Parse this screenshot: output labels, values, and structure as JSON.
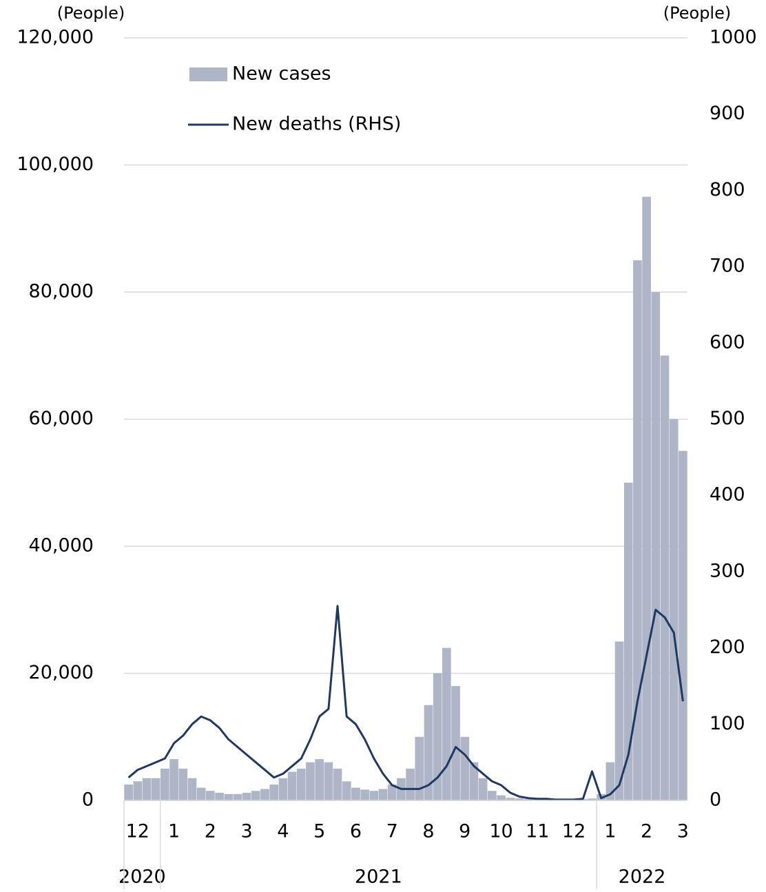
{
  "chart_data": {
    "type": "bar-line",
    "y_label": "(People)",
    "y2_label": "(People)",
    "categories": [
      null,
      "12",
      null,
      null,
      null,
      "1",
      null,
      null,
      null,
      "2",
      null,
      null,
      null,
      "3",
      null,
      null,
      null,
      "4",
      null,
      null,
      null,
      "5",
      null,
      null,
      null,
      "6",
      null,
      null,
      null,
      "7",
      null,
      null,
      null,
      "8",
      null,
      null,
      null,
      "9",
      null,
      null,
      null,
      "10",
      null,
      null,
      null,
      "11",
      null,
      null,
      null,
      "12",
      null,
      null,
      null,
      "1",
      null,
      null,
      null,
      "2",
      null,
      null,
      null,
      "3"
    ],
    "year_labels": [
      "2020",
      "2021",
      "2022"
    ],
    "series": [
      {
        "name": "New cases",
        "type": "bar",
        "color": "#adb5c7",
        "axis": "y",
        "values": [
          2500,
          3000,
          3500,
          3500,
          5000,
          6500,
          5000,
          3500,
          2000,
          1500,
          1200,
          1000,
          1000,
          1200,
          1500,
          1800,
          2500,
          3500,
          4500,
          5000,
          6000,
          6500,
          6000,
          5000,
          3000,
          2000,
          1700,
          1500,
          1800,
          2500,
          3500,
          5000,
          10000,
          15000,
          20000,
          24000,
          18000,
          10000,
          6000,
          3500,
          1500,
          800,
          400,
          300,
          200,
          150,
          150,
          100,
          150,
          150,
          200,
          300,
          1000,
          6000,
          25000,
          50000,
          85000,
          95000,
          80000,
          70000,
          60000,
          55000
        ]
      },
      {
        "name": "New deaths (RHS)",
        "type": "line",
        "color": "#1f3864",
        "axis": "y2",
        "values": [
          30,
          40,
          45,
          50,
          55,
          75,
          85,
          100,
          110,
          105,
          95,
          80,
          70,
          60,
          50,
          40,
          30,
          35,
          45,
          55,
          80,
          110,
          120,
          255,
          110,
          100,
          80,
          55,
          35,
          20,
          15,
          15,
          15,
          20,
          30,
          45,
          70,
          60,
          45,
          35,
          25,
          20,
          10,
          5,
          3,
          2,
          2,
          1,
          1,
          1,
          2,
          38,
          3,
          8,
          20,
          60,
          130,
          190,
          250,
          240,
          220,
          130
        ]
      }
    ],
    "ylim": [
      0,
      120000
    ],
    "yticks": [
      0,
      {
        "value": 20000,
        "label": "20,000"
      },
      {
        "value": 40000,
        "label": "40,000"
      },
      {
        "value": 60000,
        "label": "60,000"
      },
      {
        "value": 80000,
        "label": "80,000"
      },
      {
        "value": 100000,
        "label": "100,000"
      },
      {
        "value": 120000,
        "label": "120,000"
      }
    ],
    "y2lim": [
      0,
      1000
    ],
    "y2ticks": [
      0,
      100,
      200,
      300,
      400,
      500,
      600,
      700,
      800,
      900,
      1000
    ],
    "grid": true
  }
}
